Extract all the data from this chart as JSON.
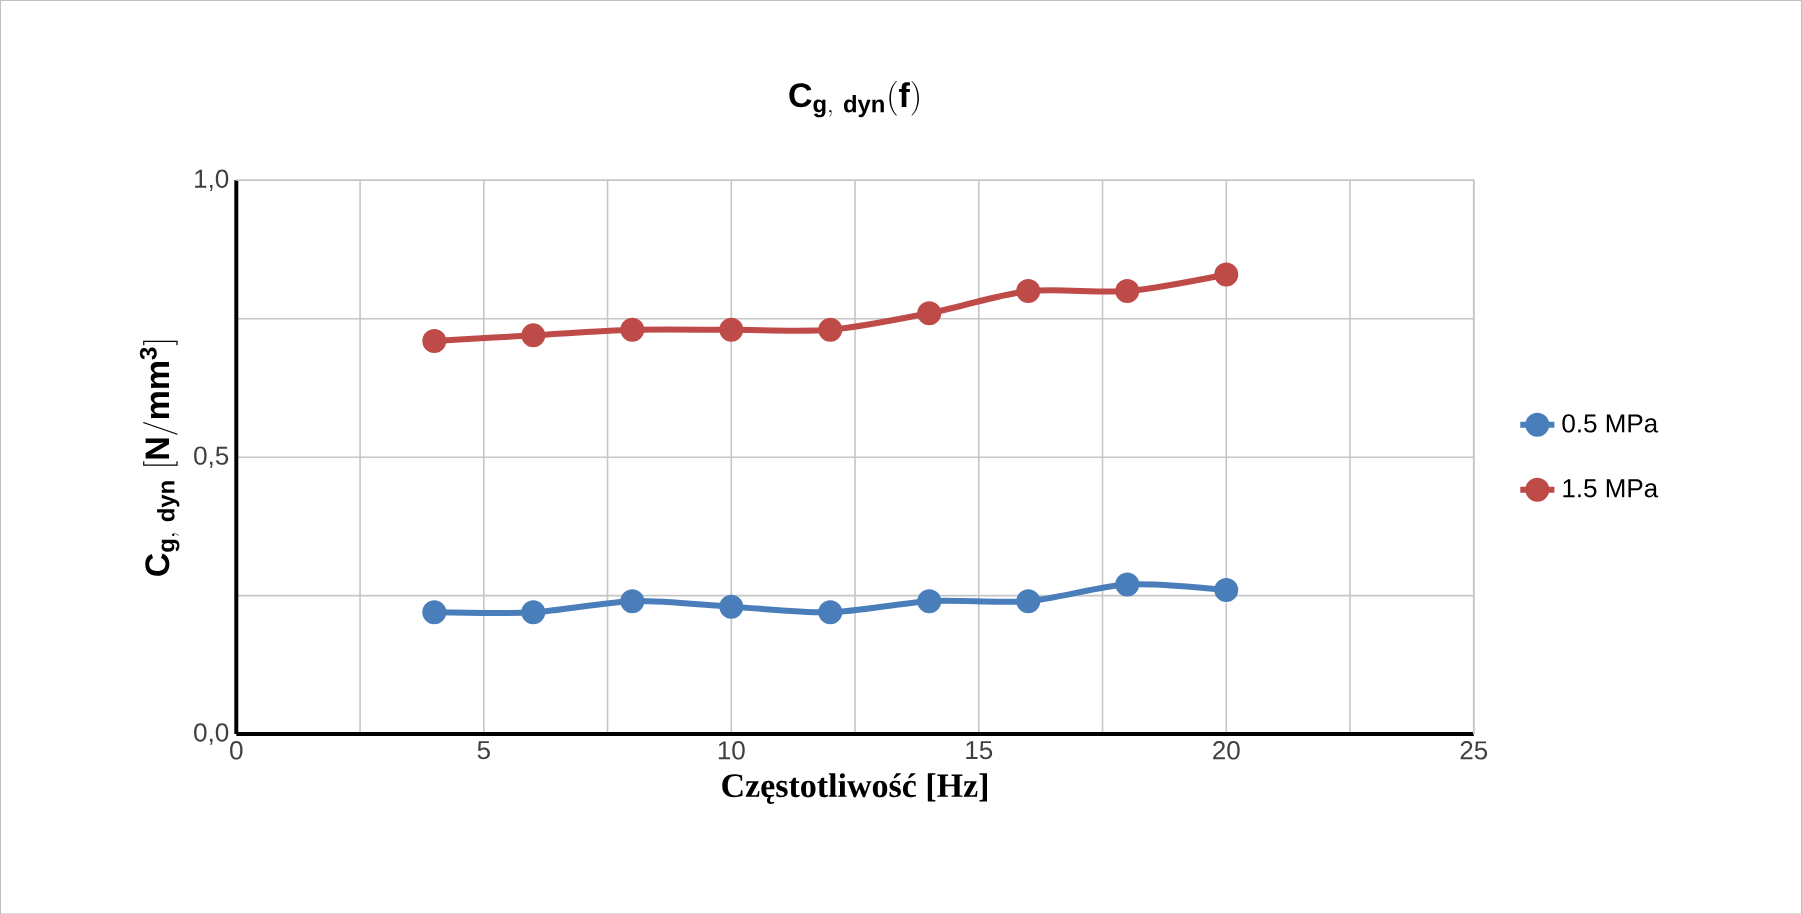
{
  "chart_data": {
    "type": "line",
    "title": "\\mathbf{C_{g,\\ dyn}(f)}",
    "xlabel": "Częstotliwość [Hz]",
    "ylabel": "\\mathbf{C_{g,\\ dyn}\\ [N/mm^{3}]}",
    "x": [
      4,
      6,
      8,
      10,
      12,
      14,
      16,
      18,
      20
    ],
    "series": [
      {
        "name": "0.5 MPa",
        "color": "#4a7ebb",
        "values": [
          0.22,
          0.22,
          0.24,
          0.23,
          0.22,
          0.24,
          0.24,
          0.27,
          0.26
        ]
      },
      {
        "name": "1.5 MPa",
        "color": "#be4b48",
        "values": [
          0.71,
          0.72,
          0.73,
          0.73,
          0.73,
          0.76,
          0.8,
          0.8,
          0.83
        ]
      }
    ],
    "xlim": [
      0,
      25
    ],
    "ylim": [
      0,
      1.0
    ],
    "xticks": [
      0,
      {
        "value": 2.5,
        "label": null
      },
      5,
      {
        "value": 7.5,
        "label": null
      },
      10,
      {
        "value": 12.5,
        "label": null
      },
      15,
      {
        "value": 17.5,
        "label": null
      },
      20,
      {
        "value": 22.5,
        "label": null
      },
      25
    ],
    "yticks": [
      {
        "value": 0,
        "label": "0,0"
      },
      {
        "value": 0.25,
        "label": null
      },
      {
        "value": 0.5,
        "label": "0,5"
      },
      {
        "value": 0.75,
        "label": null
      },
      {
        "value": 1.0,
        "label": "1,0"
      }
    ],
    "grid": true,
    "legend": "right",
    "marker": "circle",
    "line_style": "solid"
  }
}
